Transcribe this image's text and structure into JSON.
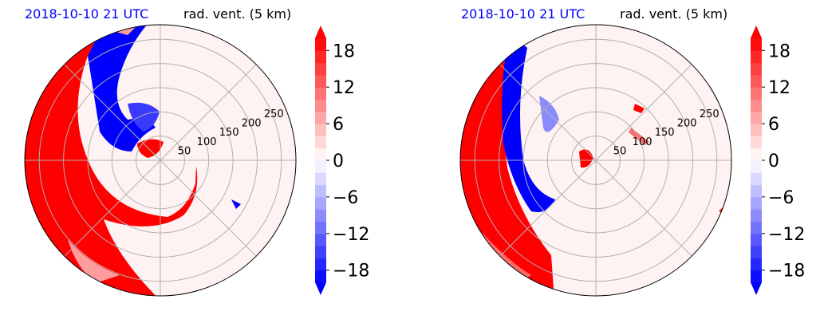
{
  "figure": {
    "panels": [
      {
        "id": "left",
        "title_left": "2018-10-10 21 UTC",
        "title_right": "rad. vent. (5 km)"
      },
      {
        "id": "right",
        "title_left": "2018-10-10 21 UTC",
        "title_right": "rad. vent. (5 km)"
      }
    ]
  },
  "colors": {
    "positive_strong": "#ff0000",
    "negative_strong": "#0000ff",
    "neutral": "#fff2f2",
    "grid": "#b0b0b0",
    "title_accent": "#0000ff"
  },
  "chart_data": [
    {
      "type": "heatmap",
      "projection": "polar",
      "title": "rad. vent. (5 km)",
      "subtitle": "2018-10-10 21 UTC",
      "radial_ticks": [
        "50",
        "100",
        "150",
        "200",
        "250"
      ],
      "radial_values": [
        50,
        100,
        150,
        200,
        250
      ],
      "radial_max": 280,
      "grid": true,
      "colorbar": {
        "min": -20,
        "max": 20,
        "step": 2,
        "ticks": [
          18,
          12,
          6,
          0,
          -6,
          -12,
          -18
        ],
        "tick_labels": [
          "18",
          "12",
          "6",
          "0",
          "−6",
          "−12",
          "−18"
        ],
        "extend": "both",
        "cmap": "bwr"
      }
    },
    {
      "type": "heatmap",
      "projection": "polar",
      "title": "rad. vent. (5 km)",
      "subtitle": "2018-10-10 21 UTC",
      "radial_ticks": [
        "50",
        "100",
        "150",
        "200",
        "250"
      ],
      "radial_values": [
        50,
        100,
        150,
        200,
        250
      ],
      "radial_max": 280,
      "grid": true,
      "colorbar": {
        "min": -20,
        "max": 20,
        "step": 2,
        "ticks": [
          18,
          12,
          6,
          0,
          -6,
          -12,
          -18
        ],
        "tick_labels": [
          "18",
          "12",
          "6",
          "0",
          "−6",
          "−12",
          "−18"
        ],
        "extend": "both",
        "cmap": "bwr"
      }
    }
  ]
}
